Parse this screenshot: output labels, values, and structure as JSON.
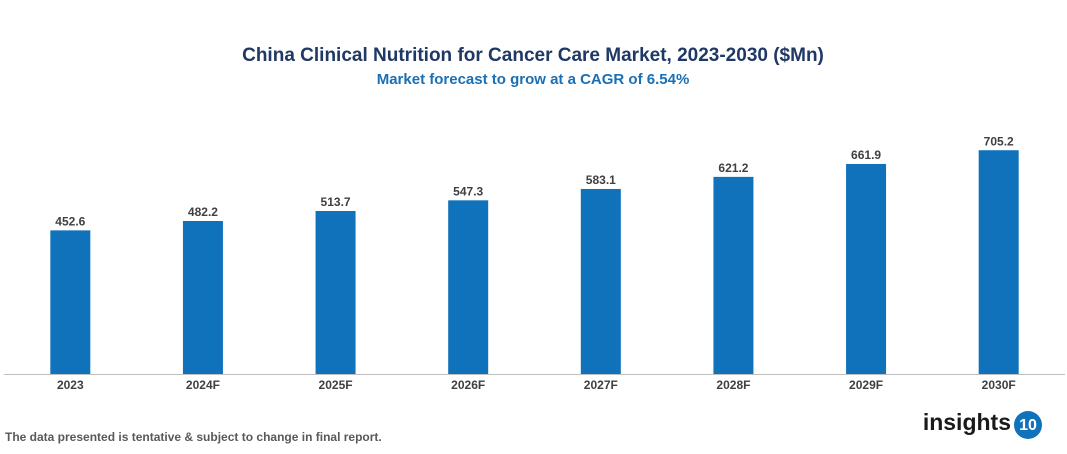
{
  "chart_data": {
    "type": "bar",
    "title": "China Clinical Nutrition for Cancer Care Market, 2023-2030 ($Mn)",
    "subtitle": "Market forecast to grow at a CAGR of 6.54%",
    "categories": [
      "2023",
      "2024F",
      "2025F",
      "2026F",
      "2027F",
      "2028F",
      "2029F",
      "2030F"
    ],
    "values": [
      452.6,
      482.2,
      513.7,
      547.3,
      583.1,
      621.2,
      661.9,
      705.2
    ],
    "color": "#1172bc",
    "ylim": [
      0,
      750
    ]
  },
  "footer": {
    "note": "The data presented is tentative & subject to change in final report.",
    "logo_text": "insights",
    "logo_number": "10"
  }
}
